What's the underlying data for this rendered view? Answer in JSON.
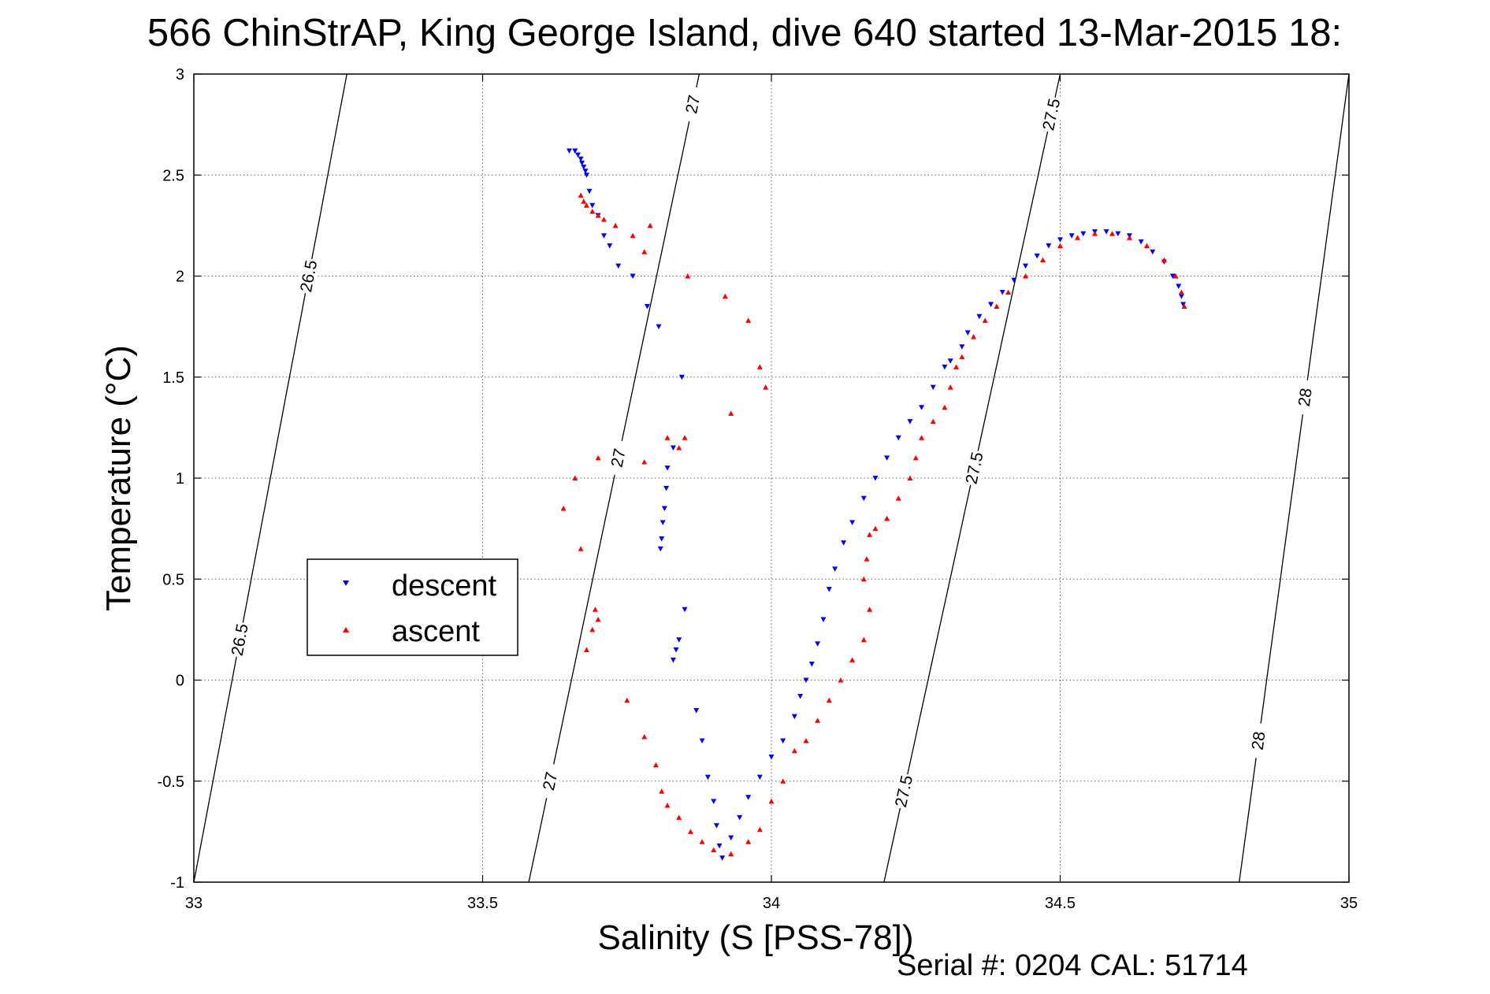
{
  "chart_data": {
    "type": "scatter",
    "title": "566 ChinStrAP, King George Island, dive 640 started 13-Mar-2015 18:",
    "xlabel": "Salinity (S [PSS-78])",
    "ylabel": "Temperature (°C)",
    "xlim": [
      33,
      35
    ],
    "ylim": [
      -1,
      3
    ],
    "xticks": [
      33,
      33.5,
      34,
      34.5,
      35
    ],
    "xtick_labels": [
      "33",
      "33.5",
      "34",
      "34.5",
      "35"
    ],
    "yticks": [
      -1,
      -0.5,
      0,
      0.5,
      1,
      1.5,
      2,
      2.5,
      3
    ],
    "ytick_labels": [
      "-1",
      "-0.5",
      "0",
      "0.5",
      "1",
      "1.5",
      "2",
      "2.5",
      "3"
    ],
    "grid": true,
    "legend_position": "left",
    "footer": "Serial #: 0204  CAL: 51714",
    "series": [
      {
        "name": "descent",
        "color": "#0000ff",
        "marker": "triangle-down",
        "points": [
          [
            33.65,
            2.62
          ],
          [
            33.66,
            2.62
          ],
          [
            33.665,
            2.6
          ],
          [
            33.67,
            2.58
          ],
          [
            33.672,
            2.56
          ],
          [
            33.675,
            2.54
          ],
          [
            33.678,
            2.52
          ],
          [
            33.68,
            2.5
          ],
          [
            33.685,
            2.42
          ],
          [
            33.69,
            2.35
          ],
          [
            33.7,
            2.3
          ],
          [
            33.71,
            2.2
          ],
          [
            33.72,
            2.15
          ],
          [
            33.735,
            2.05
          ],
          [
            33.76,
            2.0
          ],
          [
            33.785,
            1.85
          ],
          [
            33.805,
            1.75
          ],
          [
            33.845,
            1.5
          ],
          [
            33.83,
            1.15
          ],
          [
            33.82,
            1.05
          ],
          [
            33.818,
            0.95
          ],
          [
            33.815,
            0.85
          ],
          [
            33.812,
            0.78
          ],
          [
            33.81,
            0.7
          ],
          [
            33.808,
            0.65
          ],
          [
            33.85,
            0.35
          ],
          [
            33.84,
            0.2
          ],
          [
            33.835,
            0.15
          ],
          [
            33.83,
            0.1
          ],
          [
            33.87,
            -0.15
          ],
          [
            33.88,
            -0.3
          ],
          [
            33.89,
            -0.48
          ],
          [
            33.9,
            -0.6
          ],
          [
            33.905,
            -0.72
          ],
          [
            33.91,
            -0.82
          ],
          [
            33.915,
            -0.88
          ],
          [
            33.93,
            -0.78
          ],
          [
            33.945,
            -0.68
          ],
          [
            33.96,
            -0.58
          ],
          [
            33.98,
            -0.48
          ],
          [
            34.0,
            -0.38
          ],
          [
            34.02,
            -0.3
          ],
          [
            34.04,
            -0.18
          ],
          [
            34.05,
            -0.08
          ],
          [
            34.06,
            0.0
          ],
          [
            34.07,
            0.08
          ],
          [
            34.08,
            0.18
          ],
          [
            34.09,
            0.3
          ],
          [
            34.1,
            0.45
          ],
          [
            34.11,
            0.55
          ],
          [
            34.125,
            0.68
          ],
          [
            34.14,
            0.78
          ],
          [
            34.16,
            0.9
          ],
          [
            34.18,
            1.0
          ],
          [
            34.2,
            1.1
          ],
          [
            34.22,
            1.2
          ],
          [
            34.24,
            1.28
          ],
          [
            34.26,
            1.35
          ],
          [
            34.28,
            1.45
          ],
          [
            34.3,
            1.55
          ],
          [
            34.31,
            1.58
          ],
          [
            34.33,
            1.65
          ],
          [
            34.34,
            1.72
          ],
          [
            34.36,
            1.8
          ],
          [
            34.38,
            1.86
          ],
          [
            34.4,
            1.92
          ],
          [
            34.42,
            1.98
          ],
          [
            34.44,
            2.05
          ],
          [
            34.46,
            2.1
          ],
          [
            34.48,
            2.15
          ],
          [
            34.5,
            2.18
          ],
          [
            34.52,
            2.2
          ],
          [
            34.54,
            2.21
          ],
          [
            34.56,
            2.22
          ],
          [
            34.58,
            2.22
          ],
          [
            34.6,
            2.21
          ],
          [
            34.62,
            2.2
          ],
          [
            34.64,
            2.17
          ],
          [
            34.66,
            2.12
          ],
          [
            34.68,
            2.07
          ],
          [
            34.695,
            2.0
          ],
          [
            34.705,
            1.95
          ],
          [
            34.71,
            1.9
          ],
          [
            34.713,
            1.86
          ]
        ]
      },
      {
        "name": "ascent",
        "color": "#ff0000",
        "marker": "triangle-up",
        "points": [
          [
            33.67,
            2.4
          ],
          [
            33.675,
            2.37
          ],
          [
            33.68,
            2.35
          ],
          [
            33.69,
            2.32
          ],
          [
            33.7,
            2.3
          ],
          [
            33.71,
            2.28
          ],
          [
            33.73,
            2.25
          ],
          [
            33.76,
            2.2
          ],
          [
            33.79,
            2.25
          ],
          [
            33.78,
            2.12
          ],
          [
            33.855,
            2.0
          ],
          [
            33.92,
            1.9
          ],
          [
            33.96,
            1.78
          ],
          [
            33.98,
            1.55
          ],
          [
            33.99,
            1.45
          ],
          [
            33.93,
            1.32
          ],
          [
            33.82,
            1.2
          ],
          [
            33.85,
            1.2
          ],
          [
            33.84,
            1.15
          ],
          [
            33.78,
            1.08
          ],
          [
            33.7,
            1.1
          ],
          [
            33.66,
            1.0
          ],
          [
            33.64,
            0.85
          ],
          [
            33.67,
            0.65
          ],
          [
            33.695,
            0.35
          ],
          [
            33.7,
            0.3
          ],
          [
            33.69,
            0.25
          ],
          [
            33.68,
            0.15
          ],
          [
            33.75,
            -0.1
          ],
          [
            33.78,
            -0.28
          ],
          [
            33.8,
            -0.42
          ],
          [
            33.81,
            -0.55
          ],
          [
            33.82,
            -0.62
          ],
          [
            33.84,
            -0.68
          ],
          [
            33.86,
            -0.75
          ],
          [
            33.88,
            -0.8
          ],
          [
            33.9,
            -0.84
          ],
          [
            33.93,
            -0.86
          ],
          [
            33.96,
            -0.8
          ],
          [
            33.98,
            -0.74
          ],
          [
            34.0,
            -0.6
          ],
          [
            34.02,
            -0.5
          ],
          [
            34.04,
            -0.35
          ],
          [
            34.06,
            -0.3
          ],
          [
            34.08,
            -0.2
          ],
          [
            34.1,
            -0.1
          ],
          [
            34.12,
            0.0
          ],
          [
            34.14,
            0.1
          ],
          [
            34.16,
            0.2
          ],
          [
            34.17,
            0.35
          ],
          [
            34.16,
            0.5
          ],
          [
            34.165,
            0.6
          ],
          [
            34.17,
            0.72
          ],
          [
            34.18,
            0.75
          ],
          [
            34.2,
            0.8
          ],
          [
            34.22,
            0.9
          ],
          [
            34.24,
            1.0
          ],
          [
            34.25,
            1.1
          ],
          [
            34.26,
            1.2
          ],
          [
            34.28,
            1.28
          ],
          [
            34.3,
            1.35
          ],
          [
            34.31,
            1.45
          ],
          [
            34.32,
            1.55
          ],
          [
            34.33,
            1.6
          ],
          [
            34.35,
            1.7
          ],
          [
            34.37,
            1.78
          ],
          [
            34.39,
            1.85
          ],
          [
            34.41,
            1.92
          ],
          [
            34.44,
            2.0
          ],
          [
            34.47,
            2.08
          ],
          [
            34.5,
            2.15
          ],
          [
            34.53,
            2.19
          ],
          [
            34.56,
            2.21
          ],
          [
            34.59,
            2.21
          ],
          [
            34.62,
            2.19
          ],
          [
            34.65,
            2.15
          ],
          [
            34.68,
            2.08
          ],
          [
            34.7,
            2.0
          ],
          [
            34.71,
            1.92
          ],
          [
            34.715,
            1.85
          ]
        ]
      }
    ],
    "contours": [
      {
        "label": "26.5",
        "x_at_ymin": 33.0,
        "x_at_ymax": 33.265,
        "curve": 0.0,
        "labels_at_y": [
          2.0,
          0.2
        ]
      },
      {
        "label": "27",
        "x_at_ymin": 33.58,
        "x_at_ymax": 33.875,
        "curve": 0.0,
        "labels_at_y": [
          2.85,
          1.1,
          -0.5
        ]
      },
      {
        "label": "27.5",
        "x_at_ymin": 34.195,
        "x_at_ymax": 34.5,
        "curve": 0.0,
        "labels_at_y": [
          2.8,
          1.05,
          -0.55
        ]
      },
      {
        "label": "28",
        "x_at_ymin": 34.81,
        "x_at_ymax": 35.0,
        "curve": 0.0,
        "labels_at_y": [
          1.4,
          -0.3
        ]
      }
    ]
  }
}
